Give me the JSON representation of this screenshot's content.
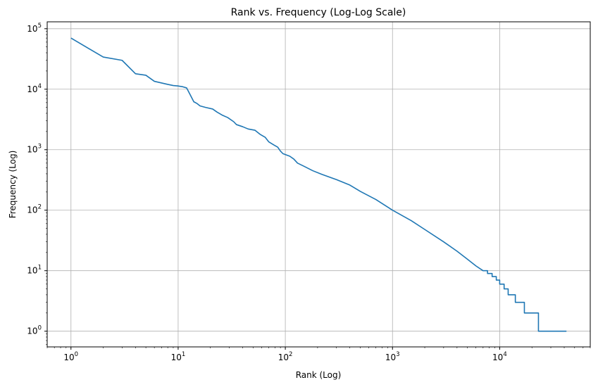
{
  "chart_data": {
    "type": "line",
    "title": "Rank vs. Frequency (Log-Log Scale)",
    "xlabel": "Rank (Log)",
    "ylabel": "Frequency (Log)",
    "xscale": "log",
    "yscale": "log",
    "xlim": [
      0.6,
      70000
    ],
    "ylim": [
      0.55,
      130000
    ],
    "grid": true,
    "series_color": "#1f77b4",
    "x_ticks": [
      {
        "value": 1,
        "base": "10",
        "exp": "0"
      },
      {
        "value": 10,
        "base": "10",
        "exp": "1"
      },
      {
        "value": 100,
        "base": "10",
        "exp": "2"
      },
      {
        "value": 1000,
        "base": "10",
        "exp": "3"
      },
      {
        "value": 10000,
        "base": "10",
        "exp": "4"
      }
    ],
    "y_ticks": [
      {
        "value": 1,
        "base": "10",
        "exp": "0"
      },
      {
        "value": 10,
        "base": "10",
        "exp": "1"
      },
      {
        "value": 100,
        "base": "10",
        "exp": "2"
      },
      {
        "value": 1000,
        "base": "10",
        "exp": "3"
      },
      {
        "value": 10000,
        "base": "10",
        "exp": "4"
      },
      {
        "value": 100000,
        "base": "10",
        "exp": "5"
      }
    ],
    "series": [
      {
        "name": "frequency",
        "points": [
          [
            1,
            70000
          ],
          [
            2,
            34000
          ],
          [
            3,
            30000
          ],
          [
            4,
            18000
          ],
          [
            5,
            17000
          ],
          [
            6,
            13500
          ],
          [
            8,
            12000
          ],
          [
            9,
            11500
          ],
          [
            10,
            11300
          ],
          [
            11,
            11000
          ],
          [
            12,
            10500
          ],
          [
            13,
            8000
          ],
          [
            14,
            6200
          ],
          [
            15,
            5800
          ],
          [
            16,
            5300
          ],
          [
            18,
            5000
          ],
          [
            21,
            4700
          ],
          [
            23,
            4200
          ],
          [
            26,
            3700
          ],
          [
            29,
            3400
          ],
          [
            33,
            2900
          ],
          [
            35,
            2600
          ],
          [
            40,
            2400
          ],
          [
            45,
            2200
          ],
          [
            52,
            2100
          ],
          [
            58,
            1800
          ],
          [
            65,
            1600
          ],
          [
            70,
            1350
          ],
          [
            78,
            1200
          ],
          [
            85,
            1100
          ],
          [
            90,
            950
          ],
          [
            95,
            860
          ],
          [
            110,
            780
          ],
          [
            120,
            700
          ],
          [
            130,
            600
          ],
          [
            150,
            530
          ],
          [
            180,
            450
          ],
          [
            220,
            390
          ],
          [
            300,
            320
          ],
          [
            400,
            260
          ],
          [
            500,
            205
          ],
          [
            700,
            150
          ],
          [
            1000,
            100
          ],
          [
            1500,
            67
          ],
          [
            2000,
            48
          ],
          [
            3000,
            30
          ],
          [
            4000,
            21
          ],
          [
            5000,
            15.5
          ],
          [
            6000,
            12
          ],
          [
            7000,
            10
          ]
        ],
        "steps": [
          [
            7000,
            10
          ],
          [
            7700,
            9
          ],
          [
            8500,
            8
          ],
          [
            9300,
            7
          ],
          [
            10000,
            6
          ],
          [
            11000,
            5
          ],
          [
            12000,
            4
          ],
          [
            14000,
            3
          ],
          [
            17000,
            2
          ],
          [
            23000,
            1
          ],
          [
            42000,
            1
          ]
        ]
      }
    ]
  }
}
